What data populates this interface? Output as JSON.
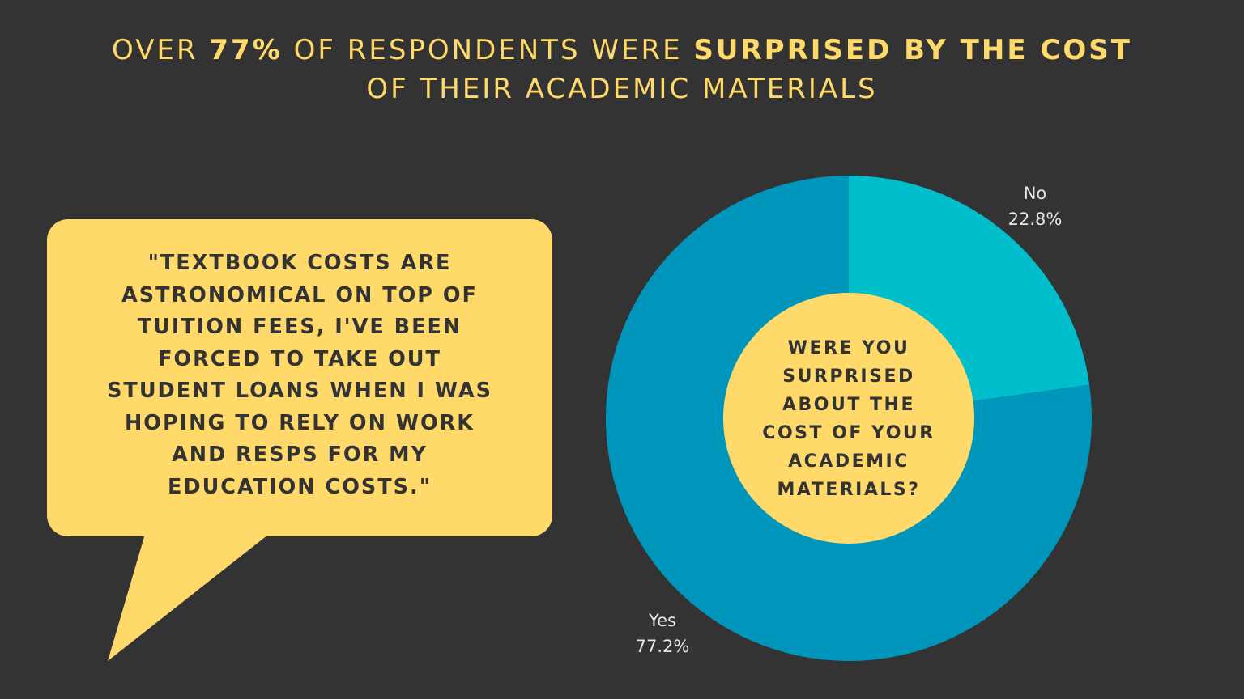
{
  "headline": {
    "line1_pre": "OVER ",
    "line1_bold1": "77%",
    "line1_mid": " OF RESPONDENTS WERE ",
    "line1_bold2": "SURPRISED BY THE COST",
    "line2": "OF THEIR ACADEMIC MATERIALS"
  },
  "quote": {
    "text": "\"TEXTBOOK COSTS ARE\nASTRONOMICAL ON TOP OF\nTUITION FEES, I'VE BEEN\nFORCED TO TAKE OUT\nSTUDENT LOANS WHEN I WAS\nHOPING TO RELY ON WORK\nAND RESPS FOR MY\nEDUCATION COSTS.\""
  },
  "colors": {
    "background": "#333333",
    "accent_yellow": "#FFD96A",
    "slice_no": "#00BECB",
    "slice_yes": "#0096BC"
  },
  "chart_data": {
    "type": "pie",
    "title": "WERE YOU\nSURPRISED\nABOUT THE\nCOST OF YOUR\nACADEMIC\nMATERIALS?",
    "slices": [
      {
        "label": "No",
        "value": 22.8,
        "value_label": "22.8%",
        "color": "#00BECB"
      },
      {
        "label": "Yes",
        "value": 77.2,
        "value_label": "77.2%",
        "color": "#0096BC"
      }
    ],
    "donut": true,
    "legend": "none"
  }
}
